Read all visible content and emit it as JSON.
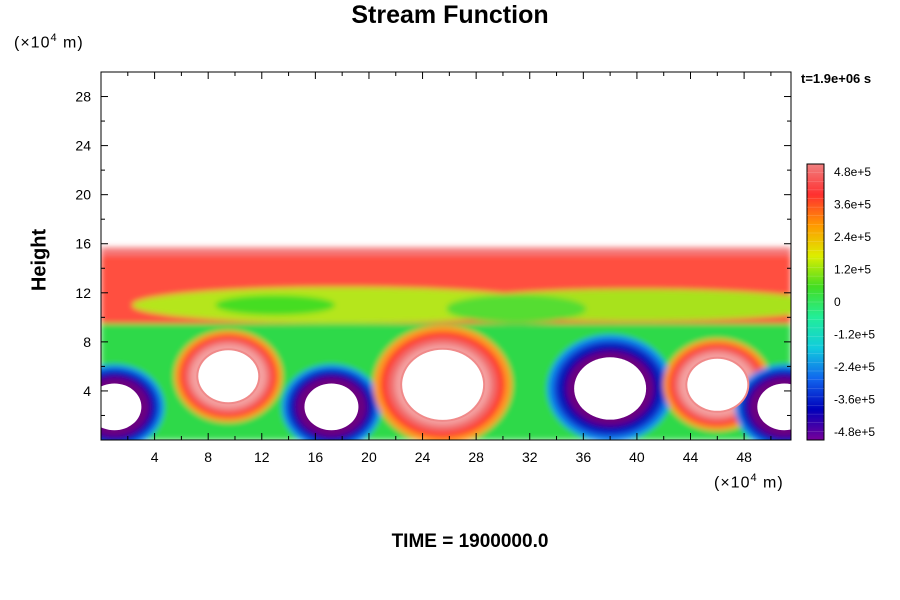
{
  "chart_data": {
    "type": "heatmap",
    "title": "Stream Function",
    "xlabel": "",
    "ylabel": "Height",
    "x_unit": {
      "prefix": "(×10",
      "exp": "4",
      "suffix": " m)"
    },
    "y_unit": {
      "prefix": "(×10",
      "exp": "4",
      "suffix": " m)"
    },
    "xlim": [
      0,
      51.5
    ],
    "ylim": [
      0,
      30
    ],
    "x_ticks": [
      4,
      8,
      12,
      16,
      20,
      24,
      28,
      32,
      36,
      40,
      44,
      48
    ],
    "y_ticks": [
      4,
      8,
      12,
      16,
      20,
      24,
      28
    ],
    "grid": false,
    "colorbar": {
      "range": [
        -480000,
        480000
      ],
      "labels": [
        "4.8e+5",
        "3.6e+5",
        "2.4e+5",
        "1.2e+5",
        "0",
        "-1.2e+5",
        "-2.4e+5",
        "-3.6e+5",
        "-4.8e+5"
      ],
      "stops": [
        "#f08080",
        "#ff3030",
        "#ff9900",
        "#ddee00",
        "#44dd22",
        "#22ee99",
        "#11ccdd",
        "#1166ee",
        "#0000bb",
        "#770099"
      ]
    },
    "field": {
      "background_value": 0,
      "upper_band": {
        "x_range": [
          0,
          51.5
        ],
        "y_range": [
          9.5,
          15.7
        ],
        "value": 420000
      },
      "mid_layer": {
        "y_center": 11,
        "value": 150000
      },
      "cells": [
        {
          "x_center": 1,
          "y_center": 2.7,
          "value": -480000,
          "label": "negative"
        },
        {
          "x_center": 9.5,
          "y_center": 5.2,
          "value": 480000,
          "label": "positive"
        },
        {
          "x_center": 17.2,
          "y_center": 2.7,
          "value": -480000,
          "label": "negative"
        },
        {
          "x_center": 25.5,
          "y_center": 4.5,
          "value": 480000,
          "label": "positive"
        },
        {
          "x_center": 38,
          "y_center": 4.2,
          "value": -480000,
          "label": "negative"
        },
        {
          "x_center": 46,
          "y_center": 4.5,
          "value": 480000,
          "label": "positive"
        },
        {
          "x_center": 51,
          "y_center": 2.7,
          "value": -480000,
          "label": "negative"
        }
      ]
    }
  },
  "timestamp": "t=1.9e+06 s",
  "caption": "TIME = 1900000.0"
}
